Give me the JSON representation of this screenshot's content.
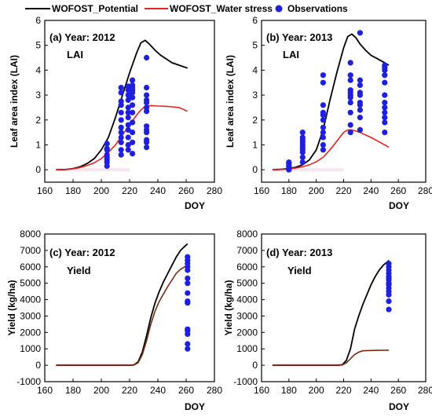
{
  "legend": {
    "potential": "WOFOST_Potential",
    "water_stress": "WOFOST_Water stress",
    "observations": "Observations"
  },
  "colors": {
    "potential": "#000000",
    "water_stress": "#e8231f",
    "observations": "#1f1fe0",
    "yield_water_stress": "#7a2a10"
  },
  "chart_data": [
    {
      "type": "line",
      "id": "a",
      "panel_label": "(a) Year: 2012",
      "variable_label": "LAI",
      "xlabel": "DOY",
      "ylabel": "Leaf area index (LAI)",
      "xlim": [
        160,
        280
      ],
      "ylim": [
        -0.5,
        6
      ],
      "xticks": [
        160,
        180,
        200,
        220,
        240,
        260,
        280
      ],
      "yticks": [
        0,
        1,
        2,
        3,
        4,
        5,
        6
      ],
      "series": [
        {
          "name": "WOFOST_Potential",
          "x": [
            168,
            175,
            180,
            185,
            190,
            195,
            200,
            205,
            210,
            215,
            220,
            225,
            228,
            231,
            234,
            238,
            242,
            246,
            250,
            255,
            261
          ],
          "y": [
            0,
            0.01,
            0.05,
            0.12,
            0.25,
            0.45,
            0.8,
            1.3,
            2.1,
            3.0,
            3.9,
            4.7,
            5.1,
            5.2,
            5.05,
            4.8,
            4.6,
            4.45,
            4.3,
            4.2,
            4.08
          ]
        },
        {
          "name": "WOFOST_Water stress",
          "x": [
            168,
            175,
            180,
            185,
            190,
            195,
            200,
            205,
            210,
            215,
            220,
            225,
            228,
            231,
            235,
            240,
            245,
            250,
            255,
            261
          ],
          "y": [
            0,
            0.01,
            0.04,
            0.09,
            0.17,
            0.28,
            0.45,
            0.7,
            1.0,
            1.4,
            1.8,
            2.2,
            2.4,
            2.55,
            2.58,
            2.56,
            2.55,
            2.53,
            2.5,
            2.35
          ]
        }
      ],
      "observations": {
        "x": [
          204,
          204,
          204,
          204,
          204,
          204,
          204,
          204,
          214,
          214,
          214,
          214,
          214,
          214,
          214,
          214,
          214,
          214,
          214,
          214,
          219,
          219,
          219,
          219,
          219,
          219,
          219,
          219,
          219,
          219,
          219,
          219,
          222,
          222,
          222,
          222,
          222,
          222,
          222,
          222,
          222,
          222,
          222,
          222,
          232,
          232,
          232,
          232,
          232,
          232,
          232,
          232,
          232,
          232,
          232,
          232,
          232
        ],
        "y": [
          0.15,
          0.3,
          0.4,
          0.5,
          0.6,
          0.8,
          0.85,
          1.05,
          0.6,
          0.8,
          1.1,
          1.3,
          1.5,
          1.7,
          2.0,
          2.3,
          2.6,
          2.75,
          3.1,
          3.3,
          0.8,
          1.0,
          1.3,
          1.6,
          1.8,
          2.1,
          2.3,
          2.5,
          2.8,
          3.0,
          3.2,
          3.35,
          0.65,
          1.1,
          1.5,
          1.9,
          2.3,
          2.6,
          2.9,
          3.1,
          3.2,
          3.3,
          3.4,
          3.6,
          0.9,
          1.1,
          1.2,
          1.5,
          1.6,
          1.75,
          2.35,
          2.5,
          2.7,
          2.8,
          3.0,
          3.3,
          4.5
        ]
      }
    },
    {
      "type": "line",
      "id": "b",
      "panel_label": "(b) Year: 2013",
      "variable_label": "LAI",
      "xlabel": "DOY",
      "ylabel": "Leaf area index (LAI)",
      "xlim": [
        160,
        280
      ],
      "ylim": [
        -0.5,
        6
      ],
      "xticks": [
        160,
        180,
        200,
        220,
        240,
        260,
        280
      ],
      "yticks": [
        0,
        1,
        2,
        3,
        4,
        5,
        6
      ],
      "series": [
        {
          "name": "WOFOST_Potential",
          "x": [
            168,
            175,
            180,
            185,
            190,
            195,
            200,
            205,
            210,
            215,
            220,
            223,
            226,
            229,
            232,
            236,
            240,
            245,
            250,
            253
          ],
          "y": [
            0,
            0.02,
            0.05,
            0.1,
            0.2,
            0.4,
            0.8,
            1.6,
            2.8,
            3.9,
            4.9,
            5.35,
            5.45,
            5.3,
            5.05,
            4.8,
            4.6,
            4.45,
            4.3,
            4.2
          ]
        },
        {
          "name": "WOFOST_Water stress",
          "x": [
            168,
            175,
            180,
            185,
            190,
            195,
            200,
            205,
            210,
            215,
            220,
            223,
            226,
            229,
            232,
            236,
            240,
            245,
            250,
            253
          ],
          "y": [
            0,
            0.01,
            0.03,
            0.07,
            0.12,
            0.2,
            0.32,
            0.5,
            0.8,
            1.15,
            1.5,
            1.6,
            1.6,
            1.55,
            1.5,
            1.4,
            1.3,
            1.15,
            1.0,
            0.9
          ]
        }
      ],
      "observations": {
        "x": [
          180,
          180,
          180,
          180,
          180,
          180,
          190,
          190,
          190,
          190,
          190,
          190,
          190,
          190,
          190,
          190,
          205,
          205,
          205,
          205,
          205,
          205,
          205,
          205,
          205,
          205,
          205,
          225,
          225,
          225,
          225,
          225,
          225,
          225,
          225,
          225,
          225,
          225,
          232,
          232,
          232,
          232,
          232,
          232,
          232,
          232,
          232,
          232,
          250,
          250,
          250,
          250,
          250,
          250,
          250,
          250,
          250,
          250,
          250,
          250
        ],
        "y": [
          0.0,
          0.05,
          0.12,
          0.18,
          0.25,
          0.3,
          0.3,
          0.5,
          0.7,
          0.8,
          0.9,
          1.0,
          1.1,
          1.2,
          1.3,
          1.5,
          0.8,
          1.0,
          1.3,
          1.5,
          1.7,
          2.0,
          2.2,
          2.3,
          2.6,
          3.5,
          3.8,
          1.5,
          1.8,
          2.3,
          2.7,
          2.9,
          3.0,
          3.2,
          3.6,
          3.8,
          4.3,
          3.1,
          1.6,
          2.1,
          2.4,
          2.6,
          3.0,
          3.1,
          3.4,
          3.6,
          5.5,
          2.7,
          1.5,
          1.9,
          2.1,
          2.3,
          2.5,
          2.7,
          3.0,
          3.5,
          3.8,
          4.0,
          4.1,
          4.2
        ]
      }
    },
    {
      "type": "line",
      "id": "c",
      "panel_label": "(c) Year: 2012",
      "variable_label": "Yield",
      "xlabel": "DOY",
      "ylabel": "Yield (kg/ha)",
      "xlim": [
        160,
        280
      ],
      "ylim": [
        -1000,
        8000
      ],
      "xticks": [
        160,
        180,
        200,
        220,
        240,
        260,
        280
      ],
      "yticks": [
        -1000,
        0,
        1000,
        2000,
        3000,
        4000,
        5000,
        6000,
        7000,
        8000
      ],
      "series": [
        {
          "name": "WOFOST_Potential",
          "x": [
            168,
            180,
            200,
            220,
            223,
            226,
            229,
            232,
            235,
            238,
            241,
            244,
            247,
            250,
            253,
            256,
            259,
            261
          ],
          "y": [
            0,
            0,
            0,
            0,
            20,
            200,
            800,
            1800,
            2900,
            3800,
            4500,
            5100,
            5600,
            6100,
            6600,
            7000,
            7250,
            7400
          ]
        },
        {
          "name": "WOFOST_Water stress",
          "x": [
            168,
            180,
            200,
            220,
            223,
            226,
            229,
            232,
            235,
            238,
            241,
            244,
            247,
            250,
            253,
            256,
            259,
            261
          ],
          "y": [
            0,
            0,
            0,
            0,
            15,
            150,
            650,
            1500,
            2500,
            3300,
            3900,
            4350,
            4800,
            5200,
            5600,
            5850,
            6000,
            6050
          ]
        }
      ],
      "observations": {
        "x": [
          261,
          261,
          261,
          261,
          261,
          261,
          261,
          261,
          261,
          261,
          261,
          261,
          261,
          261,
          261
        ],
        "y": [
          1000,
          1300,
          1900,
          2100,
          2200,
          3800,
          3900,
          4400,
          5000,
          5300,
          5800,
          6000,
          6200,
          6400,
          6600
        ]
      }
    },
    {
      "type": "line",
      "id": "d",
      "panel_label": "(d) Year: 2013",
      "variable_label": "Yield",
      "xlabel": "DOY",
      "ylabel": "Yield (kg/ha)",
      "xlim": [
        160,
        280
      ],
      "ylim": [
        -1000,
        8000
      ],
      "xticks": [
        160,
        180,
        200,
        220,
        240,
        260,
        280
      ],
      "yticks": [
        -1000,
        0,
        1000,
        2000,
        3000,
        4000,
        5000,
        6000,
        7000,
        8000
      ],
      "series": [
        {
          "name": "WOFOST_Potential",
          "x": [
            168,
            180,
            200,
            215,
            219,
            222,
            225,
            228,
            231,
            234,
            237,
            240,
            243,
            246,
            249,
            252,
            253
          ],
          "y": [
            0,
            0,
            0,
            0,
            30,
            300,
            1000,
            2200,
            3000,
            3700,
            4300,
            4900,
            5400,
            5800,
            6100,
            6300,
            6400
          ]
        },
        {
          "name": "WOFOST_Water stress",
          "x": [
            168,
            180,
            200,
            215,
            219,
            222,
            225,
            228,
            231,
            234,
            240,
            245,
            250,
            253
          ],
          "y": [
            0,
            0,
            0,
            0,
            20,
            150,
            400,
            650,
            800,
            880,
            900,
            910,
            915,
            920
          ]
        }
      ],
      "observations": {
        "x": [
          253,
          253,
          253,
          253,
          253,
          253,
          253,
          253,
          253,
          253,
          253,
          253,
          253,
          253
        ],
        "y": [
          3400,
          3900,
          4300,
          4500,
          4700,
          4900,
          5000,
          5200,
          5300,
          5400,
          5600,
          5800,
          6000,
          6200
        ]
      }
    }
  ]
}
